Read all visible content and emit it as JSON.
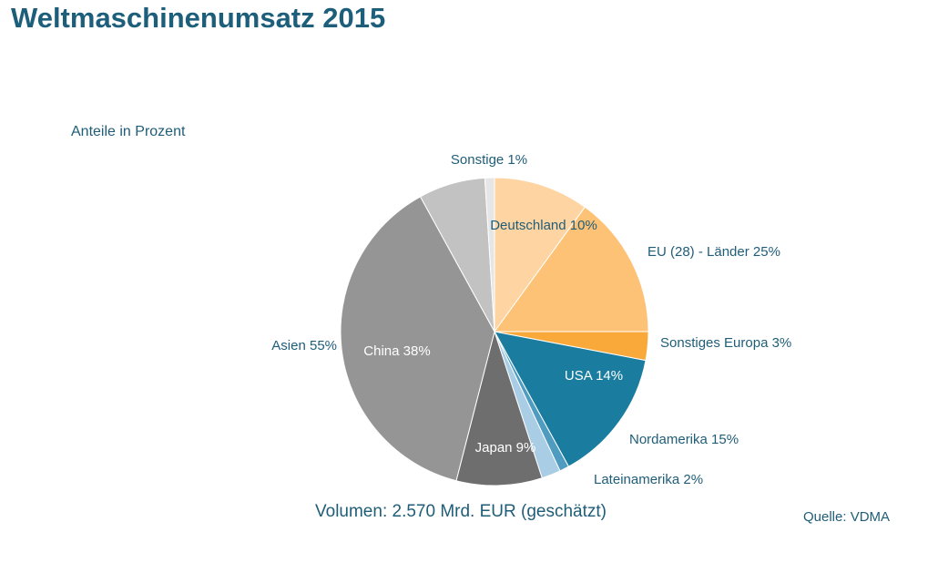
{
  "title": "Weltmaschinenumsatz 2015",
  "subtitle": "Anteile in Prozent",
  "volume": "Volumen: 2.570 Mrd. EUR (geschätzt)",
  "source": "Quelle: VDMA",
  "chart_data": {
    "type": "pie",
    "slices": [
      {
        "label": "Deutschland 10%",
        "value": 10,
        "color": "#fdd4a2",
        "text_color": "#1f5d78"
      },
      {
        "label": "EU (28) - Länder 25%",
        "value": 15,
        "color": "#fdc275",
        "text_color": "#1f5d78"
      },
      {
        "label": "Sonstiges Europa 3%",
        "value": 3,
        "color": "#f9a93a",
        "text_color": "#1f5d78"
      },
      {
        "label": "USA 14%",
        "value": 14,
        "color": "#1a7da0",
        "text_color": "#ffffff"
      },
      {
        "label": "Nordamerika 15%",
        "value": 1,
        "color": "#4f9cc0",
        "text_color": "#1f5d78"
      },
      {
        "label": "Lateinamerika 2%",
        "value": 2,
        "color": "#a9cde4",
        "text_color": "#1f5d78"
      },
      {
        "label": "Japan 9%",
        "value": 9,
        "color": "#6e6e6e",
        "text_color": "#ffffff"
      },
      {
        "label": "China 38%",
        "value": 38,
        "color": "#959595",
        "text_color": "#ffffff"
      },
      {
        "label": "Asien  55%",
        "value": 7,
        "color": "#c2c2c2",
        "text_color": "#1f5d78"
      },
      {
        "label": "Sonstige 1%",
        "value": 1,
        "color": "#e6e6e6",
        "text_color": "#1f5d78"
      }
    ]
  }
}
